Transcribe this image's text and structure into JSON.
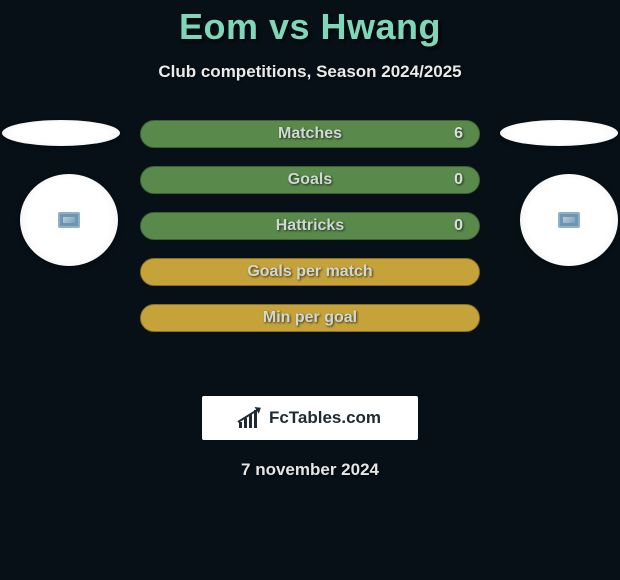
{
  "header": {
    "title": "Eom vs Hwang",
    "subtitle": "Club competitions, Season 2024/2025",
    "title_color": "#7fd6b8"
  },
  "rows": [
    {
      "label": "Matches",
      "value": "6",
      "style": "green"
    },
    {
      "label": "Goals",
      "value": "0",
      "style": "green"
    },
    {
      "label": "Hattricks",
      "value": "0",
      "style": "green"
    },
    {
      "label": "Goals per match",
      "value": "",
      "style": "yellow"
    },
    {
      "label": "Min per goal",
      "value": "",
      "style": "yellow"
    }
  ],
  "palette": {
    "green_bg": "#5a8a4b",
    "green_border": "#3e6232",
    "yellow_bg": "#c6a23a",
    "yellow_border": "#8a6f1f",
    "page_bg": "#061016"
  },
  "logo": {
    "text": "FcTables.com"
  },
  "date": "7 november 2024"
}
